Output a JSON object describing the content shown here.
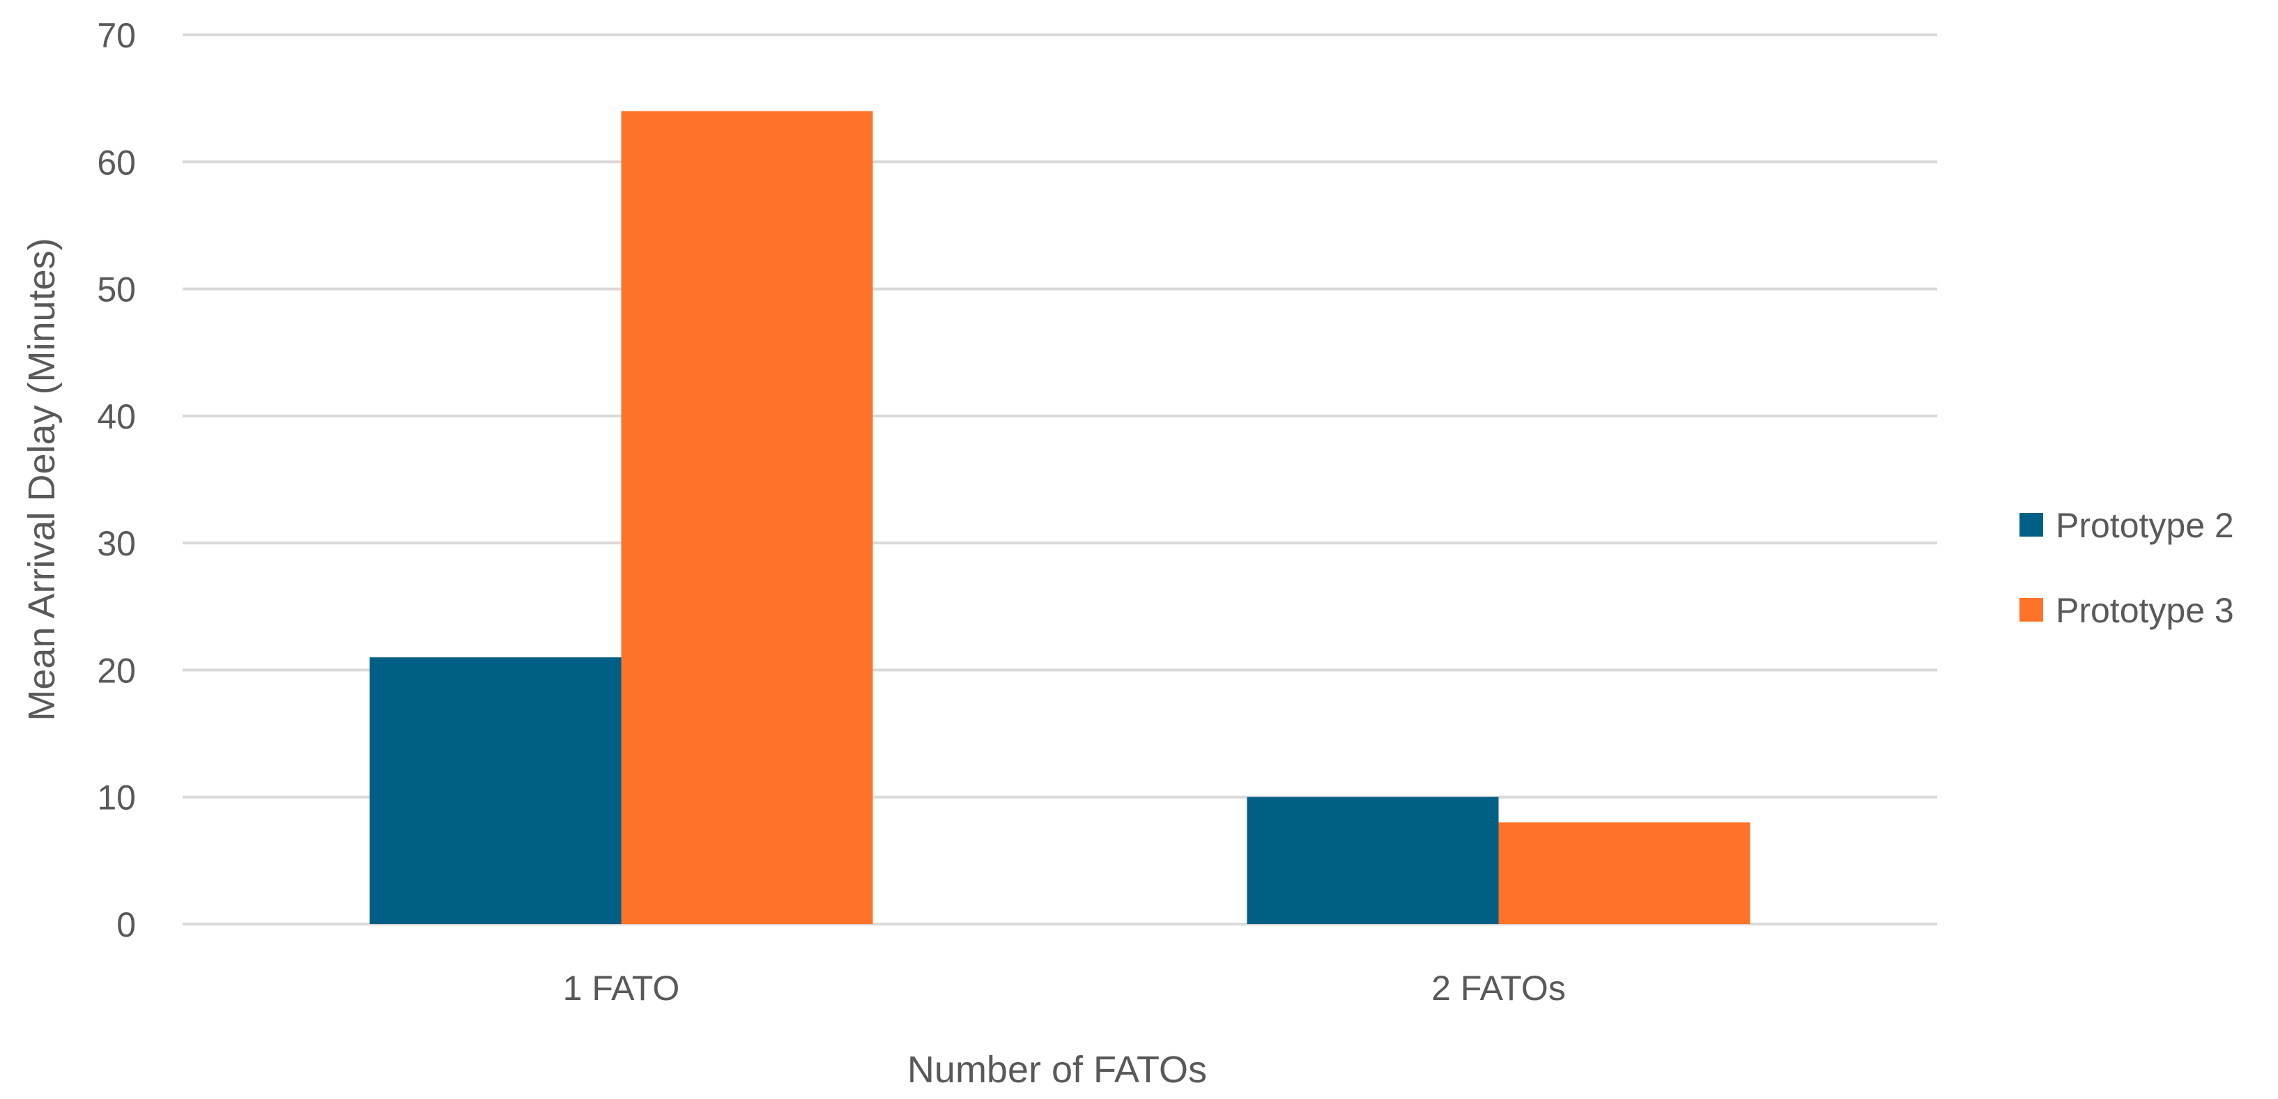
{
  "chart_data": {
    "type": "bar",
    "title": "",
    "xlabel": "Number of FATOs",
    "ylabel": "Mean Arrival Delay (Minutes)",
    "categories": [
      "1 FATO",
      "2 FATOs"
    ],
    "series": [
      {
        "name": "Prototype 2",
        "values": [
          21,
          10
        ],
        "color": "#005f85"
      },
      {
        "name": "Prototype 3",
        "values": [
          64,
          8
        ],
        "color": "#fe7328"
      }
    ],
    "ylim": [
      0,
      70
    ],
    "yticks": [
      0,
      10,
      20,
      30,
      40,
      50,
      60,
      70
    ],
    "grid": true,
    "legend_position": "right"
  }
}
